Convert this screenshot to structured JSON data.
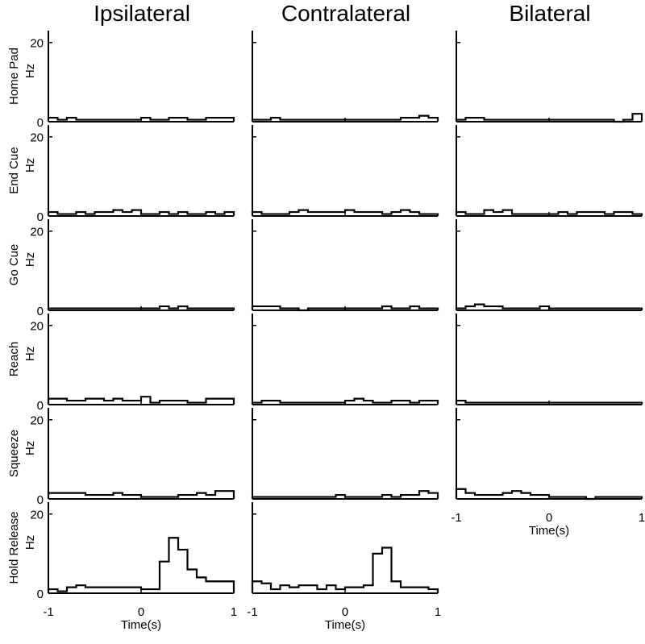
{
  "columns": [
    "Ipsilateral",
    "Contralateral",
    "Bilateral"
  ],
  "row_labels": [
    "Home Pad",
    "End Cue",
    "Go Cue",
    "Reach",
    "Squeeze",
    "Hold Release"
  ],
  "ylabel": "Hz",
  "xlabel": "Time(s)",
  "ytick_labels": [
    "0",
    "20"
  ],
  "xtick_labels": [
    "-1",
    "0",
    "1"
  ],
  "colors": {
    "line": "#000000",
    "background": "#ffffff"
  },
  "chart_data": {
    "type": "histogram",
    "bin_edges": [
      -1,
      -0.9,
      -0.8,
      -0.7,
      -0.6,
      -0.5,
      -0.4,
      -0.3,
      -0.2,
      -0.1,
      0,
      0.1,
      0.2,
      0.3,
      0.4,
      0.5,
      0.6,
      0.7,
      0.8,
      0.9,
      1.0
    ],
    "xlim": [
      -1,
      1
    ],
    "ylim": [
      0,
      23
    ],
    "grid": false,
    "panels": [
      {
        "column": "Ipsilateral",
        "row": "Home Pad",
        "values": [
          1,
          0.5,
          1,
          0.5,
          0.5,
          0.5,
          0.5,
          0.5,
          0.5,
          0.5,
          1,
          0.5,
          0.5,
          1,
          1,
          0.5,
          0.5,
          1,
          1,
          1
        ]
      },
      {
        "column": "Contralateral",
        "row": "Home Pad",
        "values": [
          0.5,
          0.5,
          1,
          0.5,
          0.5,
          0.5,
          0.5,
          0.5,
          0.5,
          0.5,
          0.5,
          0.5,
          0.5,
          0.5,
          0.5,
          0.5,
          1,
          1,
          1.5,
          1
        ]
      },
      {
        "column": "Bilateral",
        "row": "Home Pad",
        "values": [
          0.5,
          1,
          1,
          0.5,
          0.5,
          0.5,
          0.5,
          0.5,
          0.5,
          0.5,
          0.5,
          0.5,
          0.5,
          0.5,
          0.5,
          0.5,
          0.5,
          0,
          0.5,
          2
        ]
      },
      {
        "column": "Ipsilateral",
        "row": "End Cue",
        "values": [
          1,
          0.5,
          0.5,
          1,
          0.5,
          1,
          1,
          1.5,
          1,
          1.5,
          0.5,
          0.5,
          1,
          0.5,
          1,
          0.5,
          0.5,
          1,
          0.5,
          1
        ]
      },
      {
        "column": "Contralateral",
        "row": "End Cue",
        "values": [
          1,
          0.5,
          0.5,
          0.5,
          1,
          1.5,
          1,
          1,
          1,
          1,
          1.5,
          1,
          1,
          1,
          0.5,
          1,
          1.5,
          1,
          0.5,
          0.5
        ]
      },
      {
        "column": "Bilateral",
        "row": "End Cue",
        "values": [
          1,
          0.5,
          0.5,
          1.5,
          1,
          1.5,
          0.5,
          0.5,
          0.5,
          0.5,
          0.5,
          1,
          0.5,
          1,
          1,
          1,
          0.5,
          1,
          1,
          0.5
        ]
      },
      {
        "column": "Ipsilateral",
        "row": "Go Cue",
        "values": [
          0.5,
          0.5,
          0.5,
          0.5,
          0.5,
          0.5,
          0.5,
          0.5,
          0.5,
          0.5,
          0.5,
          0.5,
          1,
          0.5,
          1,
          0.5,
          0.5,
          0.5,
          0.5,
          0.5
        ]
      },
      {
        "column": "Contralateral",
        "row": "Go Cue",
        "values": [
          1,
          1,
          1,
          0.5,
          0.5,
          0,
          0.5,
          0.5,
          0.5,
          0.5,
          0.5,
          0.5,
          0.5,
          0.5,
          1,
          0.5,
          0.5,
          1,
          0.5,
          0.5
        ]
      },
      {
        "column": "Bilateral",
        "row": "Go Cue",
        "values": [
          0.5,
          1,
          1.5,
          1,
          1,
          0.5,
          0.5,
          0.5,
          0.5,
          1,
          0.5,
          0.5,
          0.5,
          0.5,
          0.5,
          0.5,
          0.5,
          0.5,
          0.5,
          0.5
        ]
      },
      {
        "column": "Ipsilateral",
        "row": "Reach",
        "values": [
          1.5,
          1.5,
          1,
          1,
          1.5,
          1.5,
          1,
          1.5,
          1,
          1,
          2,
          0.5,
          1,
          1,
          1,
          0.5,
          0.5,
          1.5,
          1.5,
          1.5
        ]
      },
      {
        "column": "Contralateral",
        "row": "Reach",
        "values": [
          0.5,
          1,
          1,
          0.5,
          0.5,
          0.5,
          0.5,
          0.5,
          0.5,
          0.5,
          1,
          1.5,
          1,
          0.5,
          0.5,
          1,
          1,
          0.5,
          1,
          1
        ]
      },
      {
        "column": "Bilateral",
        "row": "Reach",
        "values": [
          1,
          0.5,
          0.5,
          0.5,
          0.5,
          0.5,
          0.5,
          0.5,
          0.5,
          0.5,
          0.5,
          0.5,
          0.5,
          0.5,
          0.5,
          0.5,
          0.5,
          0.5,
          0.5,
          0.5
        ]
      },
      {
        "column": "Ipsilateral",
        "row": "Squeeze",
        "values": [
          1.5,
          1.5,
          1.5,
          1.5,
          1,
          1,
          1,
          1.5,
          1,
          1,
          0.5,
          0.5,
          0.5,
          0.5,
          1,
          1,
          1.5,
          1,
          2,
          2
        ]
      },
      {
        "column": "Contralateral",
        "row": "Squeeze",
        "values": [
          0.5,
          0.5,
          0.5,
          0.5,
          0.5,
          0.5,
          0.5,
          0.5,
          0.5,
          1,
          0.5,
          0.5,
          0.5,
          0.5,
          1,
          0.5,
          1,
          1,
          2,
          1.5
        ]
      },
      {
        "column": "Bilateral",
        "row": "Squeeze",
        "values": [
          2.5,
          1.5,
          1,
          1,
          1,
          1.5,
          2,
          1.5,
          1,
          1,
          0.5,
          0.5,
          0.5,
          0.5,
          0,
          0.5,
          0.5,
          0.5,
          0.5,
          0.5
        ]
      },
      {
        "column": "Ipsilateral",
        "row": "Hold Release",
        "values": [
          1,
          0.5,
          1.5,
          2,
          1.5,
          1.5,
          1.5,
          1.5,
          1.5,
          1.5,
          1,
          1,
          8,
          14,
          11,
          6,
          4,
          3,
          3,
          3
        ]
      },
      {
        "column": "Contralateral",
        "row": "Hold Release",
        "values": [
          3,
          2.5,
          1,
          2,
          1.5,
          2,
          2,
          1,
          2,
          1,
          1.5,
          1.5,
          2,
          10,
          11.5,
          3,
          1.5,
          1.5,
          1.5,
          1
        ]
      }
    ]
  }
}
